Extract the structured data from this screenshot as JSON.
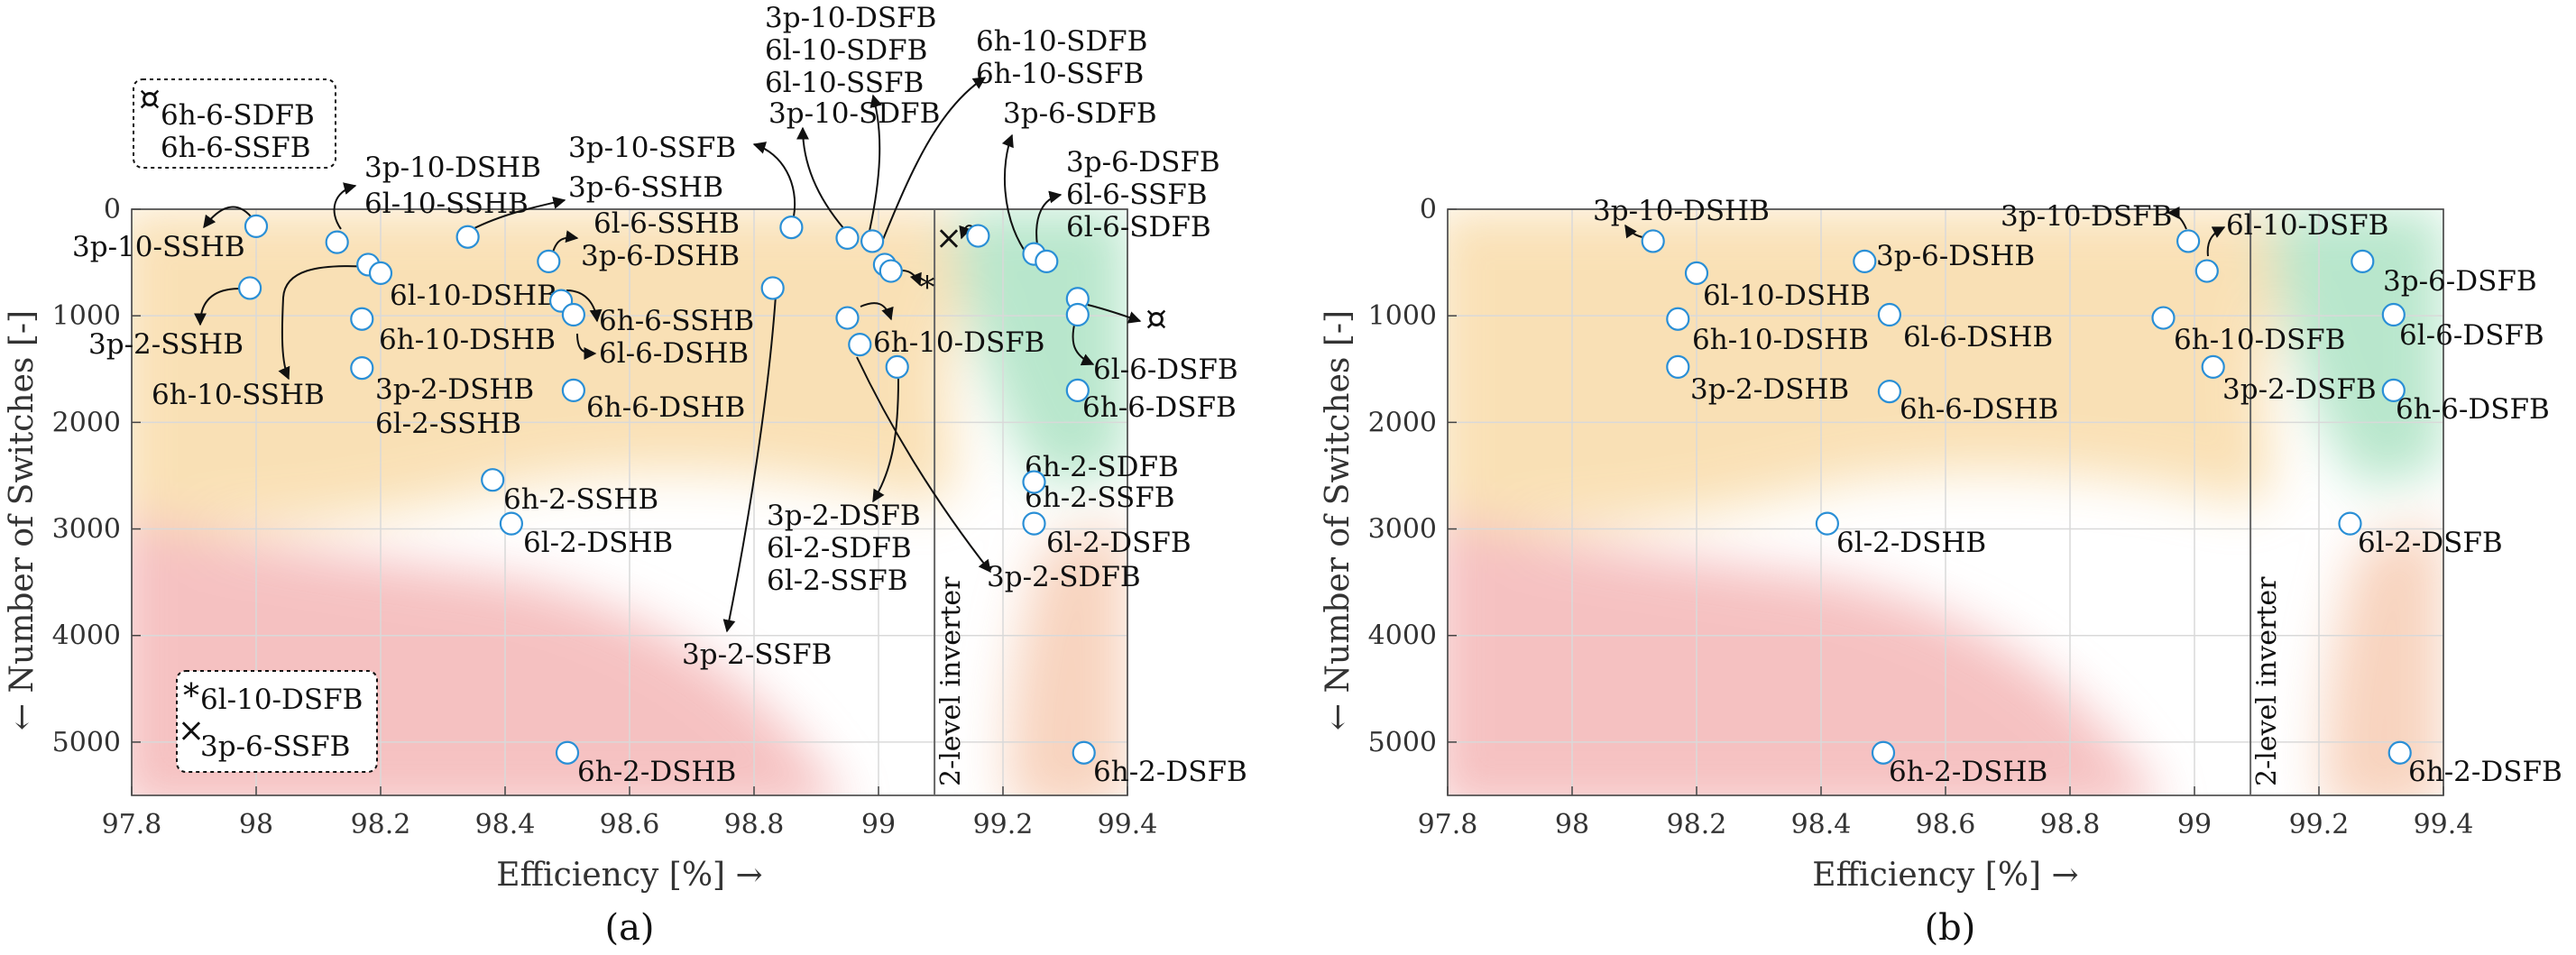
{
  "chart_data": [
    {
      "id": "a",
      "type": "scatter",
      "caption": "(a)",
      "xlabel": "Efficiency [%] →",
      "ylabel": "← Number of Switches [-]",
      "xlim": [
        97.8,
        99.4
      ],
      "ylim": [
        0,
        5500
      ],
      "y_inverted": true,
      "grid": true,
      "xticks": [
        "97.8",
        "98",
        "98.2",
        "98.4",
        "98.6",
        "98.8",
        "99",
        "99.2",
        "99.4"
      ],
      "yticks": [
        "0",
        "1000",
        "2000",
        "3000",
        "4000",
        "5000"
      ],
      "reference_line": {
        "x": 99.09,
        "label": "2-level inverter"
      },
      "legend": [
        {
          "marker": "¤",
          "lines": [
            "6h-6-SDFB",
            "6h-6-SSFB"
          ],
          "placement": "top-left"
        },
        {
          "marker": "*",
          "lines": [
            "6l-10-DSFB"
          ],
          "placement": "bottom-left"
        },
        {
          "marker": "×",
          "lines": [
            "3p-6-SSFB"
          ],
          "placement": "bottom-left"
        }
      ],
      "points": [
        {
          "x": 98.0,
          "y": 160,
          "label": "3p-10-SSHB"
        },
        {
          "x": 97.99,
          "y": 740,
          "label": "3p-2-SSHB"
        },
        {
          "x": 98.13,
          "y": 310,
          "label": "3p-10-DSHB / 6l-10-SSHB"
        },
        {
          "x": 98.18,
          "y": 520,
          "label": "6l-10-DSHB"
        },
        {
          "x": 98.2,
          "y": 600,
          "label": "6h-10-SSHB"
        },
        {
          "x": 98.17,
          "y": 1030,
          "label": "6h-10-DSHB"
        },
        {
          "x": 98.17,
          "y": 1490,
          "label": "3p-2-DSHB / 6l-2-SSHB"
        },
        {
          "x": 98.34,
          "y": 260,
          "label": "3p-6-SSHB"
        },
        {
          "x": 98.47,
          "y": 490,
          "label": "6l-6-SSHB / 3p-6-DSHB"
        },
        {
          "x": 98.49,
          "y": 860,
          "label": "6h-6-SSHB"
        },
        {
          "x": 98.51,
          "y": 990,
          "label": "6l-6-DSHB"
        },
        {
          "x": 98.51,
          "y": 1700,
          "label": "6h-6-DSHB"
        },
        {
          "x": 98.38,
          "y": 2540,
          "label": "6h-2-SSHB"
        },
        {
          "x": 98.41,
          "y": 2950,
          "label": "6l-2-DSHB"
        },
        {
          "x": 98.5,
          "y": 5100,
          "label": "6h-2-DSHB"
        },
        {
          "x": 98.83,
          "y": 740,
          "label": "3p-2-SSFB"
        },
        {
          "x": 98.86,
          "y": 170,
          "label": "3p-10-SSFB"
        },
        {
          "x": 98.95,
          "y": 270,
          "label": "3p-10-SDFB"
        },
        {
          "x": 98.99,
          "y": 300,
          "label": "3p-10-DSFB / 6l-10-SDFB / 6l-10-SSFB"
        },
        {
          "x": 99.01,
          "y": 520,
          "label": "6h-10-SDFB / 6h-10-SSFB"
        },
        {
          "x": 99.02,
          "y": 580,
          "label": "6l-10-DSFB"
        },
        {
          "x": 98.95,
          "y": 1020,
          "label": "6h-10-DSFB"
        },
        {
          "x": 98.97,
          "y": 1270,
          "label": "3p-2-SDFB"
        },
        {
          "x": 99.03,
          "y": 1480,
          "label": "3p-2-DSFB / 6l-2-SDFB / 6l-2-SSFB"
        },
        {
          "x": 99.16,
          "y": 250,
          "label": "3p-6-SSFB"
        },
        {
          "x": 99.25,
          "y": 420,
          "label": "3p-6-SDFB"
        },
        {
          "x": 99.27,
          "y": 490,
          "label": "3p-6-DSFB / 6l-6-SSFB / 6l-6-SDFB"
        },
        {
          "x": 99.32,
          "y": 840,
          "label": "6h-6-SDFB"
        },
        {
          "x": 99.32,
          "y": 990,
          "label": "6l-6-DSFB"
        },
        {
          "x": 99.32,
          "y": 1700,
          "label": "6h-6-DSFB"
        },
        {
          "x": 99.25,
          "y": 2560,
          "label": "6h-2-SDFB / 6h-2-SSFB"
        },
        {
          "x": 99.25,
          "y": 2950,
          "label": "6l-2-DSFB"
        },
        {
          "x": 99.33,
          "y": 5100,
          "label": "6h-2-DSFB"
        }
      ]
    },
    {
      "id": "b",
      "type": "scatter",
      "caption": "(b)",
      "xlabel": "Efficiency [%] →",
      "ylabel": "← Number of Switches [-]",
      "xlim": [
        97.8,
        99.4
      ],
      "ylim": [
        0,
        5500
      ],
      "y_inverted": true,
      "grid": true,
      "xticks": [
        "97.8",
        "98",
        "98.2",
        "98.4",
        "98.6",
        "98.8",
        "99",
        "99.2",
        "99.4"
      ],
      "yticks": [
        "0",
        "1000",
        "2000",
        "3000",
        "4000",
        "5000"
      ],
      "reference_line": {
        "x": 99.09,
        "label": "2-level inverter"
      },
      "points": [
        {
          "x": 98.13,
          "y": 300,
          "label": "3p-10-DSHB"
        },
        {
          "x": 98.2,
          "y": 600,
          "label": "6l-10-DSHB"
        },
        {
          "x": 98.17,
          "y": 1030,
          "label": "6h-10-DSHB"
        },
        {
          "x": 98.17,
          "y": 1480,
          "label": "3p-2-DSHB"
        },
        {
          "x": 98.47,
          "y": 490,
          "label": "3p-6-DSHB"
        },
        {
          "x": 98.51,
          "y": 990,
          "label": "6l-6-DSHB"
        },
        {
          "x": 98.51,
          "y": 1710,
          "label": "6h-6-DSHB"
        },
        {
          "x": 98.41,
          "y": 2950,
          "label": "6l-2-DSHB"
        },
        {
          "x": 98.5,
          "y": 5100,
          "label": "6h-2-DSHB"
        },
        {
          "x": 98.99,
          "y": 300,
          "label": "3p-10-DSFB"
        },
        {
          "x": 99.02,
          "y": 580,
          "label": "6l-10-DSFB"
        },
        {
          "x": 98.95,
          "y": 1020,
          "label": "6h-10-DSFB"
        },
        {
          "x": 99.03,
          "y": 1480,
          "label": "3p-2-DSFB"
        },
        {
          "x": 99.27,
          "y": 490,
          "label": "3p-6-DSFB"
        },
        {
          "x": 99.32,
          "y": 990,
          "label": "6l-6-DSFB"
        },
        {
          "x": 99.32,
          "y": 1700,
          "label": "6h-6-DSFB"
        },
        {
          "x": 99.25,
          "y": 2950,
          "label": "6l-2-DSFB"
        },
        {
          "x": 99.33,
          "y": 5100,
          "label": "6h-2-DSFB"
        }
      ]
    }
  ]
}
